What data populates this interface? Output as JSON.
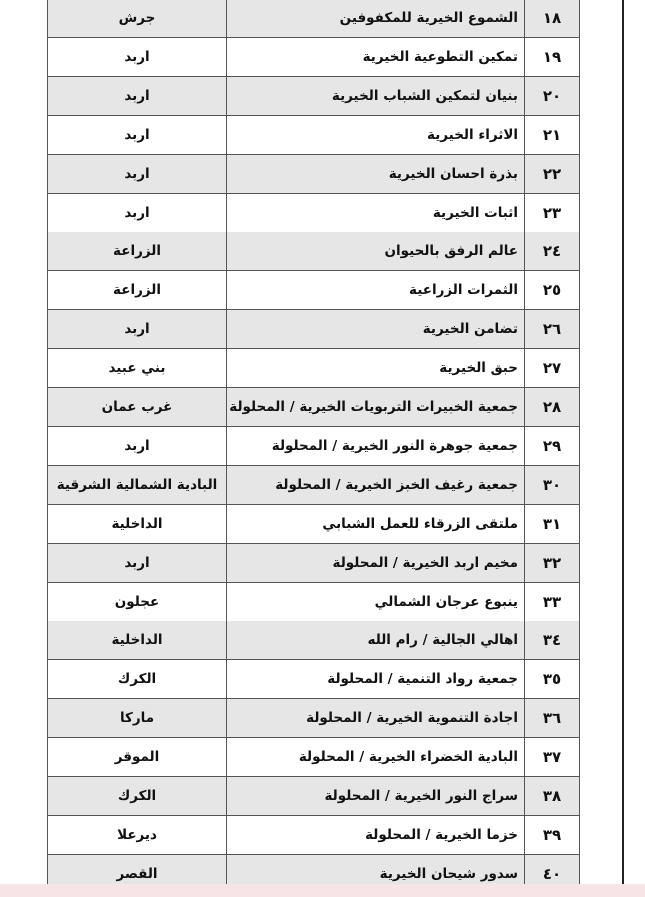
{
  "table": {
    "rows": [
      [
        "١٨",
        "الشموع الخيرية للمكفوفين",
        "جرش"
      ],
      [
        "١٩",
        "تمكين التطوعية الخيرية",
        "اربد"
      ],
      [
        "٢٠",
        "بنيان لتمكين الشباب الخيرية",
        "اربد"
      ],
      [
        "٢١",
        "الاثراء الخيرية",
        "اربد"
      ],
      [
        "٢٢",
        "بذرة احسان الخيرية",
        "اربد"
      ],
      [
        "٢٣",
        "اثبات الخيرية",
        "اربد"
      ],
      [
        "٢٤",
        "عالم الرفق بالحيوان",
        "الزراعة"
      ],
      [
        "٢٥",
        "الثمرات الزراعية",
        "الزراعة"
      ],
      [
        "٢٦",
        "تضامن الخيرية",
        "اربد"
      ],
      [
        "٢٧",
        "حبق الخيرية",
        "بني عبيد"
      ],
      [
        "٢٨",
        "جمعية الخبيرات التربويات الخيرية / المحلولة",
        "غرب عمان"
      ],
      [
        "٢٩",
        "جمعية جوهرة النور الخيرية / المحلولة",
        "اربد"
      ],
      [
        "٣٠",
        "جمعية رغيف الخبز الخيرية / المحلولة",
        "البادية الشمالية الشرقية"
      ],
      [
        "٣١",
        "ملتقى الزرقاء للعمل الشبابي",
        "الداخلية"
      ],
      [
        "٣٢",
        "مخيم اربد الخيرية / المحلولة",
        "اربد"
      ],
      [
        "٣٣",
        "ينبوع عرجان الشمالي",
        "عجلون"
      ],
      [
        "٣٤",
        "اهالي الجالية / رام الله",
        "الداخلية"
      ],
      [
        "٣٥",
        "جمعية رواد التنمية / المحلولة",
        "الكرك"
      ],
      [
        "٣٦",
        "اجادة التنموية الخيرية / المحلولة",
        "ماركا"
      ],
      [
        "٣٧",
        "البادية الخضراء الخيرية / المحلولة",
        "الموقر"
      ],
      [
        "٣٨",
        "سراج النور الخيرية / المحلولة",
        "الكرك"
      ],
      [
        "٣٩",
        "خزما الخيرية / المحلولة",
        "ديرعلا"
      ],
      [
        "٤٠",
        "سدور شيحان الخيرية",
        "القصر"
      ]
    ]
  }
}
